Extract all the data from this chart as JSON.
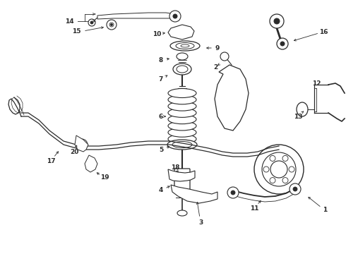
{
  "bg_color": "#f5f5f5",
  "fig_width": 4.9,
  "fig_height": 3.6,
  "dpi": 100,
  "line_color": "#2a2a2a",
  "font_size": 6.5,
  "font_weight": "bold"
}
